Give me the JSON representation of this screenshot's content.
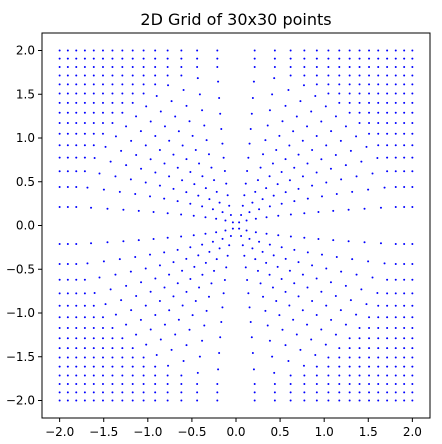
{
  "chart_data": {
    "type": "scatter",
    "title": "2D Grid of 30x30 points",
    "xlabel": "",
    "ylabel": "",
    "xlim": [
      -2.2,
      2.2
    ],
    "ylim": [
      -2.2,
      2.2
    ],
    "grid": false,
    "marker_color": "#0000ff",
    "x_ticks": [
      "−2.0",
      "−1.5",
      "−1.0",
      "−0.5",
      "0.0",
      "0.5",
      "1.0",
      "1.5",
      "2.0"
    ],
    "y_ticks": [
      "−2.0",
      "−1.5",
      "−1.0",
      "−0.5",
      "0.0",
      "0.5",
      "1.0",
      "1.5",
      "2.0"
    ],
    "x_tick_values": [
      -2.0,
      -1.5,
      -1.0,
      -0.5,
      0.0,
      0.5,
      1.0,
      1.5,
      2.0
    ],
    "y_tick_values": [
      -2.0,
      -1.5,
      -1.0,
      -0.5,
      0.0,
      0.5,
      1.0,
      1.5,
      2.0
    ],
    "grid_n": 30,
    "grid_range": [
      -2.0,
      2.0
    ],
    "transform": "signed-square-per-axis (cube-root grid); r <= 1.8 rescaled as r^2/1.8"
  }
}
